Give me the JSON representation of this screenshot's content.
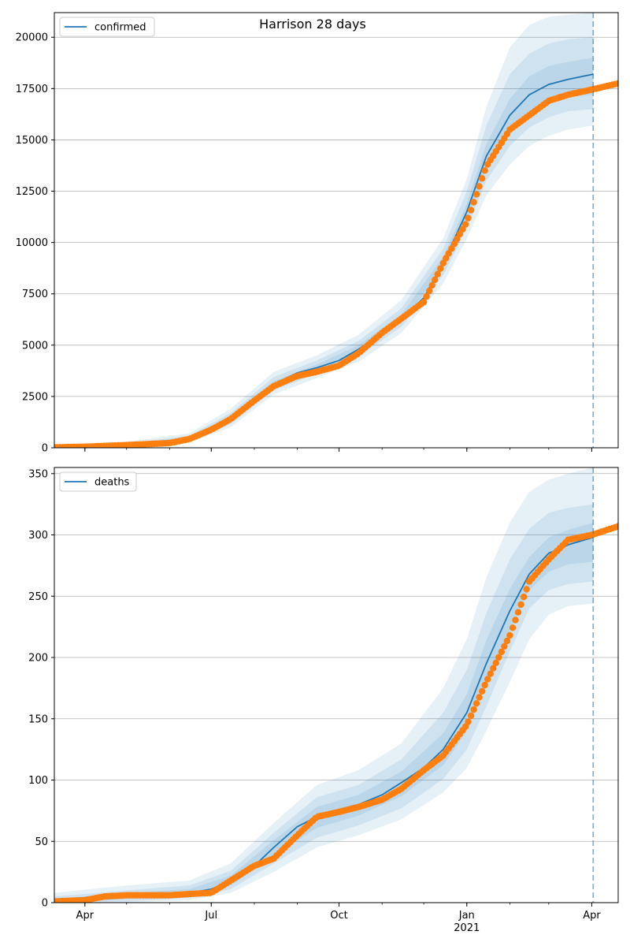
{
  "figure": {
    "title": "Harrison 28 days"
  },
  "colors": {
    "model": "#1f77b4",
    "observed": "#ff7f0e",
    "band": "#1f77b4",
    "grid": "#b0b0b0",
    "forecast_line": "#1f77b4"
  },
  "chart_data": [
    {
      "type": "line",
      "panel": "top",
      "legend": [
        "confirmed"
      ],
      "legend_position": "top-left",
      "grid": "horizontal",
      "xlim": [
        "2020-03-10",
        "2021-04-20"
      ],
      "ylim": [
        0,
        21200
      ],
      "yticks": [
        0,
        2500,
        5000,
        7500,
        10000,
        12500,
        15000,
        17500,
        20000
      ],
      "forecast_date": "2021-04-02",
      "series": [
        {
          "name": "confirmed",
          "kind": "model",
          "x": [
            "2020-03-10",
            "2020-04-01",
            "2020-05-01",
            "2020-06-01",
            "2020-06-15",
            "2020-07-01",
            "2020-07-15",
            "2020-08-01",
            "2020-08-15",
            "2020-09-01",
            "2020-09-15",
            "2020-10-01",
            "2020-10-15",
            "2020-11-01",
            "2020-11-15",
            "2020-12-01",
            "2020-12-15",
            "2021-01-01",
            "2021-01-15",
            "2021-02-01",
            "2021-02-15",
            "2021-03-01",
            "2021-03-15",
            "2021-04-02"
          ],
          "y": [
            20,
            60,
            150,
            250,
            450,
            850,
            1400,
            2300,
            3100,
            3650,
            3900,
            4250,
            4800,
            5600,
            6300,
            7300,
            9000,
            11500,
            14200,
            16200,
            17200,
            17700,
            17950,
            18200
          ]
        },
        {
          "name": "observed",
          "kind": "points",
          "x": [
            "2020-03-10",
            "2020-04-01",
            "2020-05-01",
            "2020-06-01",
            "2020-06-15",
            "2020-07-01",
            "2020-07-15",
            "2020-08-01",
            "2020-08-15",
            "2020-09-01",
            "2020-09-15",
            "2020-10-01",
            "2020-10-15",
            "2020-11-01",
            "2020-11-15",
            "2020-12-01",
            "2020-12-15",
            "2021-01-01",
            "2021-01-15",
            "2021-02-01",
            "2021-02-15",
            "2021-03-01",
            "2021-03-15",
            "2021-04-01",
            "2021-04-20"
          ],
          "y": [
            20,
            50,
            130,
            230,
            420,
            880,
            1400,
            2300,
            3000,
            3500,
            3700,
            4000,
            4600,
            5600,
            6300,
            7100,
            9000,
            11000,
            13700,
            15500,
            16200,
            16900,
            17200,
            17450,
            17750
          ]
        }
      ],
      "bands": [
        {
          "x": [
            "2020-03-10",
            "2020-05-01",
            "2020-06-15",
            "2020-07-15",
            "2020-08-15",
            "2020-09-15",
            "2020-10-15",
            "2020-11-15",
            "2020-12-15",
            "2021-01-01",
            "2021-01-15",
            "2021-02-01",
            "2021-02-15",
            "2021-03-01",
            "2021-03-15",
            "2021-04-02"
          ],
          "lower": [
            0,
            60,
            250,
            1000,
            2600,
            3400,
            4200,
            5600,
            8000,
            10200,
            12300,
            13800,
            14700,
            15200,
            15500,
            15700
          ],
          "upper": [
            150,
            300,
            700,
            1900,
            3700,
            4500,
            5500,
            7200,
            10200,
            13100,
            16600,
            19500,
            20600,
            21000,
            21100,
            21200
          ]
        },
        {
          "x": [
            "2020-03-10",
            "2020-05-01",
            "2020-06-15",
            "2020-07-15",
            "2020-08-15",
            "2020-09-15",
            "2020-10-15",
            "2020-11-15",
            "2020-12-15",
            "2021-01-01",
            "2021-01-15",
            "2021-02-01",
            "2021-02-15",
            "2021-03-01",
            "2021-03-15",
            "2021-04-02"
          ],
          "lower": [
            0,
            90,
            320,
            1150,
            2800,
            3600,
            4450,
            5900,
            8400,
            10700,
            13000,
            14700,
            15600,
            16100,
            16400,
            16500
          ],
          "upper": [
            90,
            220,
            580,
            1700,
            3450,
            4250,
            5200,
            6800,
            9700,
            12500,
            15700,
            18200,
            19200,
            19700,
            19900,
            20000
          ]
        },
        {
          "x": [
            "2020-03-10",
            "2020-05-01",
            "2020-06-15",
            "2020-07-15",
            "2020-08-15",
            "2020-09-15",
            "2020-10-15",
            "2020-11-15",
            "2020-12-15",
            "2021-01-01",
            "2021-01-15",
            "2021-02-01",
            "2021-02-15",
            "2021-03-01",
            "2021-03-15",
            "2021-04-02"
          ],
          "lower": [
            5,
            120,
            380,
            1270,
            2950,
            3750,
            4600,
            6100,
            8700,
            11100,
            13600,
            15400,
            16300,
            16800,
            17100,
            17200
          ],
          "upper": [
            50,
            180,
            520,
            1550,
            3250,
            4050,
            5000,
            6500,
            9300,
            11900,
            14800,
            17000,
            18100,
            18600,
            18800,
            19000
          ]
        }
      ],
      "xticks_major": [
        "Apr",
        "Jul",
        "Oct",
        "Jan",
        "Apr"
      ],
      "xticks_major_dates": [
        "2020-04-01",
        "2020-07-01",
        "2020-10-01",
        "2021-01-01",
        "2021-04-01"
      ]
    },
    {
      "type": "line",
      "panel": "bottom",
      "legend": [
        "deaths"
      ],
      "legend_position": "top-left",
      "grid": "horizontal",
      "xlim": [
        "2020-03-10",
        "2021-04-20"
      ],
      "ylim": [
        0,
        355
      ],
      "yticks": [
        0,
        50,
        100,
        150,
        200,
        250,
        300,
        350
      ],
      "forecast_date": "2021-04-02",
      "series": [
        {
          "name": "deaths",
          "kind": "model",
          "x": [
            "2020-03-10",
            "2020-04-01",
            "2020-05-01",
            "2020-06-01",
            "2020-06-15",
            "2020-07-01",
            "2020-07-15",
            "2020-08-01",
            "2020-08-15",
            "2020-09-01",
            "2020-09-15",
            "2020-10-01",
            "2020-10-15",
            "2020-11-01",
            "2020-11-15",
            "2020-12-01",
            "2020-12-15",
            "2021-01-01",
            "2021-01-15",
            "2021-02-01",
            "2021-02-15",
            "2021-03-01",
            "2021-03-15",
            "2021-04-02"
          ],
          "y": [
            1,
            3,
            5,
            6,
            8,
            11,
            18,
            30,
            45,
            62,
            70,
            76,
            80,
            88,
            98,
            110,
            125,
            155,
            195,
            238,
            268,
            285,
            292,
            298
          ]
        },
        {
          "name": "observed",
          "kind": "points",
          "x": [
            "2020-03-10",
            "2020-04-01",
            "2020-04-15",
            "2020-05-01",
            "2020-06-01",
            "2020-06-15",
            "2020-07-01",
            "2020-07-15",
            "2020-08-01",
            "2020-08-15",
            "2020-09-01",
            "2020-09-15",
            "2020-10-01",
            "2020-10-15",
            "2020-11-01",
            "2020-11-15",
            "2020-12-01",
            "2020-12-15",
            "2021-01-01",
            "2021-01-15",
            "2021-02-01",
            "2021-02-15",
            "2021-03-01",
            "2021-03-15",
            "2021-04-01",
            "2021-04-20"
          ],
          "y": [
            1,
            2,
            5,
            6,
            6,
            7,
            8,
            18,
            30,
            36,
            55,
            70,
            74,
            78,
            84,
            93,
            108,
            120,
            145,
            180,
            218,
            262,
            280,
            296,
            300,
            307
          ]
        }
      ],
      "bands": [
        {
          "x": [
            "2020-03-10",
            "2020-05-01",
            "2020-06-15",
            "2020-07-15",
            "2020-08-15",
            "2020-09-15",
            "2020-10-15",
            "2020-11-15",
            "2020-12-15",
            "2021-01-01",
            "2021-01-15",
            "2021-02-01",
            "2021-02-15",
            "2021-03-01",
            "2021-03-15",
            "2021-04-02"
          ],
          "lower": [
            0,
            0,
            2,
            8,
            25,
            45,
            55,
            68,
            90,
            110,
            140,
            180,
            215,
            235,
            242,
            244
          ],
          "upper": [
            8,
            14,
            18,
            32,
            65,
            96,
            108,
            130,
            175,
            215,
            265,
            310,
            335,
            345,
            350,
            355
          ]
        },
        {
          "x": [
            "2020-03-10",
            "2020-05-01",
            "2020-06-15",
            "2020-07-15",
            "2020-08-15",
            "2020-09-15",
            "2020-10-15",
            "2020-11-15",
            "2020-12-15",
            "2021-01-01",
            "2021-01-15",
            "2021-02-01",
            "2021-02-15",
            "2021-03-01",
            "2021-03-15",
            "2021-04-02"
          ],
          "lower": [
            0,
            1,
            4,
            11,
            32,
            53,
            63,
            77,
            101,
            125,
            160,
            205,
            240,
            255,
            260,
            262
          ],
          "upper": [
            5,
            10,
            14,
            26,
            57,
            86,
            96,
            117,
            155,
            190,
            236,
            280,
            305,
            318,
            322,
            325
          ]
        },
        {
          "x": [
            "2020-03-10",
            "2020-05-01",
            "2020-06-15",
            "2020-07-15",
            "2020-08-15",
            "2020-09-15",
            "2020-10-15",
            "2020-11-15",
            "2020-12-15",
            "2021-01-01",
            "2021-01-15",
            "2021-02-01",
            "2021-02-15",
            "2021-03-01",
            "2021-03-15",
            "2021-04-02"
          ],
          "lower": [
            0,
            3,
            6,
            14,
            38,
            61,
            71,
            87,
            112,
            140,
            178,
            222,
            255,
            270,
            276,
            278
          ],
          "upper": [
            3,
            8,
            11,
            22,
            51,
            78,
            88,
            107,
            138,
            170,
            214,
            256,
            282,
            298,
            304,
            310
          ]
        }
      ],
      "xticks_major": [
        "Apr",
        "Jul",
        "Oct",
        "Jan",
        "Apr"
      ],
      "xticks_major_dates": [
        "2020-04-01",
        "2020-07-01",
        "2020-10-01",
        "2021-01-01",
        "2021-04-01"
      ],
      "xtick_year_label": "2021"
    }
  ]
}
